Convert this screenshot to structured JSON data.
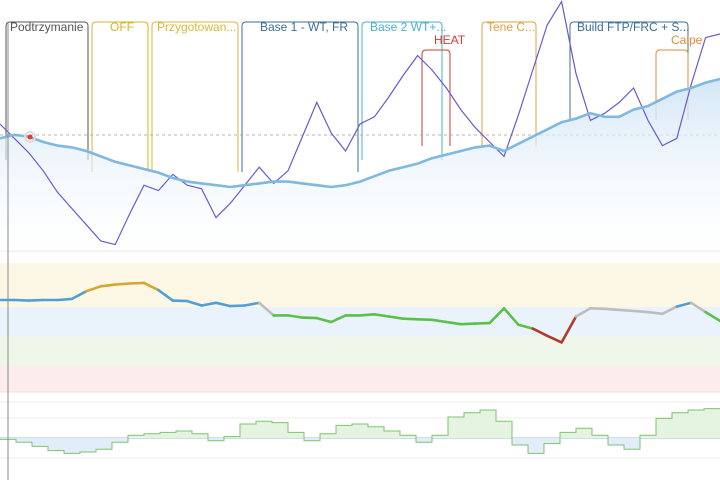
{
  "colors": {
    "fitness": "#7fb8e0",
    "fatigue": "#6a5acd",
    "form_grey": "#bdbdbd",
    "form_blue": "#4f9fd8",
    "form_gold": "#d4a830",
    "form_green": "#5cbf4a",
    "form_red": "#b03a2e",
    "zone_yellow": "#fdf8e6",
    "zone_blue": "#eaf3fb",
    "zone_green": "#eef7ea",
    "zone_red": "#fcecec",
    "ramp_green": "#7cc46f",
    "ramp_blue": "#6fa8dc",
    "marker": "#e53935"
  },
  "plans": [
    {
      "label": "Podtrzymanie",
      "color": "#555555"
    },
    {
      "label": "OFF",
      "color": "#d4b62a"
    },
    {
      "label": "Przygotowan...",
      "color": "#d9b93a"
    },
    {
      "label": "Base 1 - WT, FR",
      "color": "#3e6f96"
    },
    {
      "label": "Base 2 WT+...",
      "color": "#4ab3c9"
    },
    {
      "label": "HEAT",
      "color": "#d43a3a"
    },
    {
      "label": "Tene C...",
      "color": "#e0a040"
    },
    {
      "label": "Build FTP/FRC + S...",
      "color": "#3e6f96"
    },
    {
      "label": "Calpe",
      "color": "#e08a3a"
    }
  ],
  "chart_data": [
    {
      "type": "line",
      "series": [
        {
          "values": [
            0.62,
            0.64,
            0.63,
            0.6,
            0.58,
            0.57,
            0.55,
            0.52,
            0.49,
            0.47,
            0.45,
            0.43,
            0.4,
            0.38,
            0.37,
            0.36,
            0.35,
            0.36,
            0.37,
            0.38,
            0.38,
            0.37,
            0.36,
            0.35,
            0.36,
            0.38,
            0.41,
            0.44,
            0.46,
            0.48,
            0.51,
            0.53,
            0.55,
            0.57,
            0.58,
            0.55,
            0.59,
            0.63,
            0.67,
            0.71,
            0.73,
            0.76,
            0.74,
            0.74,
            0.78,
            0.8,
            0.84,
            0.88,
            0.9,
            0.93,
            0.95
          ]
        },
        {
          "values": [
            0.7,
            0.62,
            0.54,
            0.44,
            0.32,
            0.23,
            0.14,
            0.05,
            0.03,
            0.2,
            0.36,
            0.33,
            0.42,
            0.36,
            0.34,
            0.18,
            0.26,
            0.36,
            0.46,
            0.37,
            0.44,
            0.63,
            0.82,
            0.65,
            0.55,
            0.7,
            0.74,
            0.85,
            0.97,
            1.08,
            1.0,
            0.9,
            0.78,
            0.68,
            0.6,
            0.52,
            0.75,
            1.0,
            1.25,
            1.38,
            0.98,
            0.72,
            0.76,
            0.82,
            0.9,
            0.72,
            0.58,
            0.62,
            0.92,
            1.18,
            1.2
          ]
        }
      ]
    },
    {
      "type": "line",
      "series": [
        {
          "values": [
            0.4,
            0.4,
            0.39,
            0.4,
            0.4,
            0.42,
            0.56,
            0.65,
            0.68,
            0.7,
            0.71,
            0.58,
            0.39,
            0.38,
            0.3,
            0.35,
            0.29,
            0.3,
            0.35,
            0.12,
            0.12,
            0.08,
            0.07,
            0.0,
            0.12,
            0.12,
            0.14,
            0.1,
            0.06,
            0.05,
            0.04,
            0.0,
            -0.04,
            -0.03,
            -0.02,
            0.25,
            -0.05,
            -0.12,
            -0.25,
            -0.37,
            0.1,
            0.25,
            0.24,
            0.22,
            0.2,
            0.18,
            0.15,
            0.28,
            0.35,
            0.18,
            0.02
          ]
        }
      ]
    },
    {
      "type": "area",
      "series": [
        {
          "values": [
            -0.1,
            -0.3,
            -0.6,
            -0.9,
            -1.1,
            -1.0,
            -0.8,
            -0.3,
            0.2,
            0.3,
            0.4,
            0.5,
            0.3,
            -0.2,
            0.1,
            1.0,
            1.2,
            1.1,
            0.4,
            -0.2,
            0.3,
            0.9,
            1.0,
            0.8,
            0.5,
            0.2,
            -0.3,
            0.2,
            1.5,
            1.8,
            2.0,
            1.2,
            -0.5,
            -1.1,
            -0.4,
            0.4,
            0.7,
            0.2,
            -0.5,
            -0.8,
            0.2,
            1.4,
            1.8,
            2.0,
            2.1
          ]
        }
      ]
    }
  ]
}
